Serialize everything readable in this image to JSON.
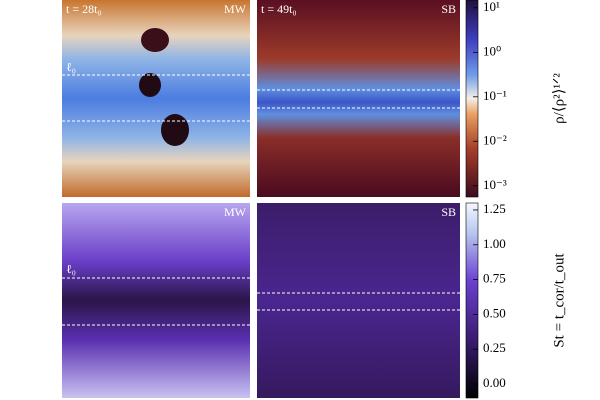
{
  "panels": [
    {
      "time": "t = 28t₀",
      "label": "MW",
      "scale_label": "ℓ₀"
    },
    {
      "time": "t = 49t₀",
      "label": "SB"
    },
    {
      "label": "MW",
      "scale_label": "ℓ₀"
    },
    {
      "label": "SB"
    }
  ],
  "colorbars": [
    {
      "label": "ρ/⟨ρ²⟩¹ᐟ²",
      "log": true,
      "lim": [
        0.00056,
        15
      ],
      "ticks": [
        {
          "value": 10,
          "label": "10¹"
        },
        {
          "value": 1,
          "label": "10⁰"
        },
        {
          "value": 0.1,
          "label": "10⁻¹"
        },
        {
          "value": 0.01,
          "label": "10⁻²"
        },
        {
          "value": 0.001,
          "label": "10⁻³"
        }
      ]
    },
    {
      "label": "St = t_cor/t_out",
      "log": false,
      "lim": [
        -0.1,
        1.3
      ],
      "ticks": [
        {
          "value": 1.25,
          "label": "1.25"
        },
        {
          "value": 1,
          "label": "1.00"
        },
        0.75,
        {
          "value": 0.5,
          "label": "0.50"
        },
        0.25,
        {
          "value": 0,
          "label": "0.00"
        }
      ]
    }
  ]
}
